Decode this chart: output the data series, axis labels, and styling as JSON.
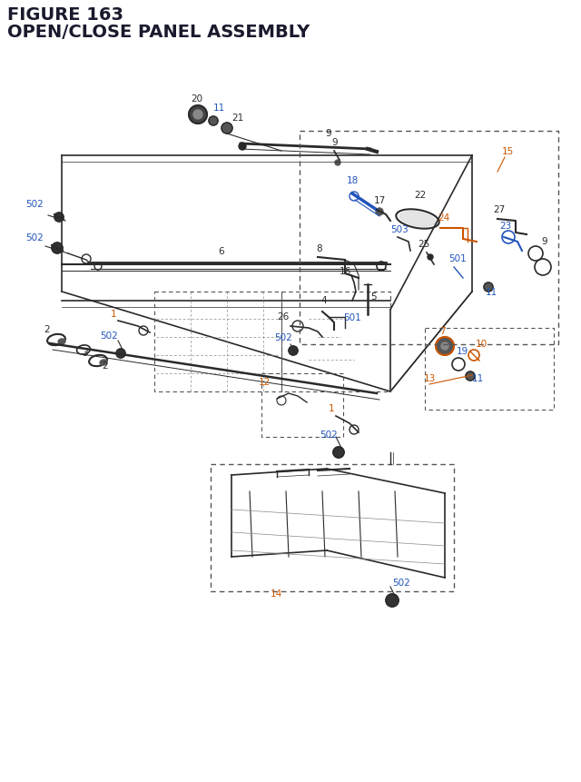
{
  "title_line1": "FIGURE 163",
  "title_line2": "OPEN/CLOSE PANEL ASSEMBLY",
  "bg_color": "#ffffff",
  "title_color": "#1a1a2e",
  "title_fontsize": 14,
  "C_BLK": "#2a2a2a",
  "C_BLU": "#2255bb",
  "C_ORG": "#cc5500",
  "C_GRY": "#888888",
  "C_DGRY": "#555555"
}
